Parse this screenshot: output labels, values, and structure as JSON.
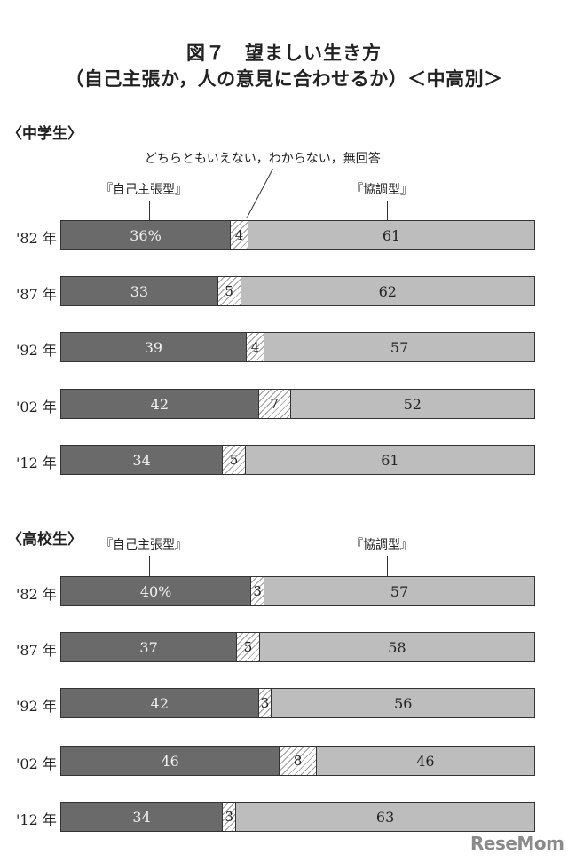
{
  "header": {
    "title_line1": "図７　望ましい生き方",
    "title_line2": "（自己主張か，人の意見に合わせるか）＜中高別＞"
  },
  "legend": {
    "assert": "『自己主張型』",
    "coop": "『協調型』",
    "neutral": "どちらともいえない，わからない，無回答"
  },
  "colors": {
    "assert": "#6a6a6a",
    "neutral": "#ffffff (hatched)",
    "coop": "#bdbdbd"
  },
  "watermark": "ReseMom",
  "chart_data": [
    {
      "type": "bar",
      "stacked": true,
      "orientation": "horizontal",
      "title": "〈中学生〉",
      "categories": [
        "'82 年",
        "'87 年",
        "'92 年",
        "'02 年",
        "'12 年"
      ],
      "series": [
        {
          "name": "『自己主張型』",
          "values": [
            36,
            33,
            39,
            42,
            34
          ]
        },
        {
          "name": "どちらともいえない，わからない，無回答",
          "values": [
            4,
            5,
            4,
            7,
            5
          ]
        },
        {
          "name": "『協調型』",
          "values": [
            61,
            62,
            57,
            52,
            61
          ]
        }
      ],
      "labels": [
        [
          "36%",
          "4",
          "61"
        ],
        [
          "33",
          "5",
          "62"
        ],
        [
          "39",
          "4",
          "57"
        ],
        [
          "42",
          "7",
          "52"
        ],
        [
          "34",
          "5",
          "61"
        ]
      ],
      "unit": "%",
      "xlim": [
        0,
        100
      ]
    },
    {
      "type": "bar",
      "stacked": true,
      "orientation": "horizontal",
      "title": "〈高校生〉",
      "categories": [
        "'82 年",
        "'87 年",
        "'92 年",
        "'02 年",
        "'12 年"
      ],
      "series": [
        {
          "name": "『自己主張型』",
          "values": [
            40,
            37,
            42,
            46,
            34
          ]
        },
        {
          "name": "どちらともいえない，わからない，無回答",
          "values": [
            3,
            5,
            3,
            8,
            3
          ]
        },
        {
          "name": "『協調型』",
          "values": [
            57,
            58,
            56,
            46,
            63
          ]
        }
      ],
      "labels": [
        [
          "40%",
          "3",
          "57"
        ],
        [
          "37",
          "5",
          "58"
        ],
        [
          "42",
          "3",
          "56"
        ],
        [
          "46",
          "8",
          "46"
        ],
        [
          "34",
          "3",
          "63"
        ]
      ],
      "unit": "%",
      "xlim": [
        0,
        100
      ]
    }
  ]
}
